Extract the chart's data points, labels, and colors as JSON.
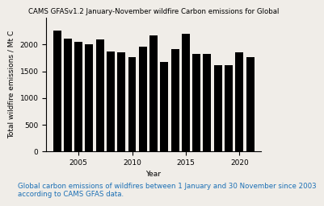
{
  "title": "CAMS GFASv1.2 January-November wildfire Carbon emissions for Global",
  "xlabel": "Year",
  "ylabel": "Total wildfire emissions / Mt C",
  "years": [
    2003,
    2004,
    2005,
    2006,
    2007,
    2008,
    2009,
    2010,
    2011,
    2012,
    2013,
    2014,
    2015,
    2016,
    2017,
    2018,
    2019,
    2020,
    2021
  ],
  "values": [
    2270,
    2120,
    2060,
    2000,
    2100,
    1870,
    1850,
    1760,
    1960,
    2170,
    1670,
    1910,
    2200,
    1830,
    1830,
    1620,
    1610,
    1850,
    1760
  ],
  "bar_color": "#000000",
  "background_color": "#f0ede8",
  "caption": "Global carbon emissions of wildfires between 1 January and 30 November since 2003\naccording to CAMS GFAS data.",
  "caption_color": "#1a6fb5",
  "ylim": [
    0,
    2500
  ],
  "yticks": [
    0,
    500,
    1000,
    1500,
    2000
  ],
  "xticks": [
    2005,
    2010,
    2015,
    2020
  ],
  "title_fontsize": 6.2,
  "axis_label_fontsize": 6.5,
  "tick_fontsize": 6.5,
  "caption_fontsize": 6.2
}
